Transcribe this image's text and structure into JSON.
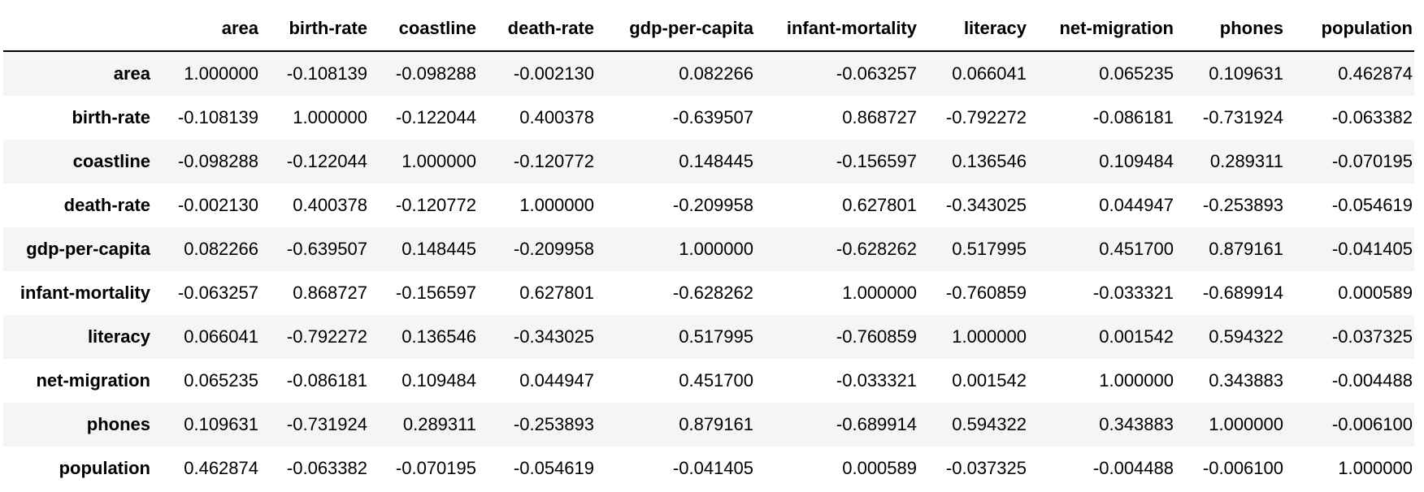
{
  "table": {
    "columns": [
      "area",
      "birth-rate",
      "coastline",
      "death-rate",
      "gdp-per-capita",
      "infant-mortality",
      "literacy",
      "net-migration",
      "phones",
      "population"
    ],
    "rows": [
      {
        "label": "area",
        "values": [
          "1.000000",
          "-0.108139",
          "-0.098288",
          "-0.002130",
          "0.082266",
          "-0.063257",
          "0.066041",
          "0.065235",
          "0.109631",
          "0.462874"
        ]
      },
      {
        "label": "birth-rate",
        "values": [
          "-0.108139",
          "1.000000",
          "-0.122044",
          "0.400378",
          "-0.639507",
          "0.868727",
          "-0.792272",
          "-0.086181",
          "-0.731924",
          "-0.063382"
        ]
      },
      {
        "label": "coastline",
        "values": [
          "-0.098288",
          "-0.122044",
          "1.000000",
          "-0.120772",
          "0.148445",
          "-0.156597",
          "0.136546",
          "0.109484",
          "0.289311",
          "-0.070195"
        ]
      },
      {
        "label": "death-rate",
        "values": [
          "-0.002130",
          "0.400378",
          "-0.120772",
          "1.000000",
          "-0.209958",
          "0.627801",
          "-0.343025",
          "0.044947",
          "-0.253893",
          "-0.054619"
        ]
      },
      {
        "label": "gdp-per-capita",
        "values": [
          "0.082266",
          "-0.639507",
          "0.148445",
          "-0.209958",
          "1.000000",
          "-0.628262",
          "0.517995",
          "0.451700",
          "0.879161",
          "-0.041405"
        ]
      },
      {
        "label": "infant-mortality",
        "values": [
          "-0.063257",
          "0.868727",
          "-0.156597",
          "0.627801",
          "-0.628262",
          "1.000000",
          "-0.760859",
          "-0.033321",
          "-0.689914",
          "0.000589"
        ]
      },
      {
        "label": "literacy",
        "values": [
          "0.066041",
          "-0.792272",
          "0.136546",
          "-0.343025",
          "0.517995",
          "-0.760859",
          "1.000000",
          "0.001542",
          "0.594322",
          "-0.037325"
        ]
      },
      {
        "label": "net-migration",
        "values": [
          "0.065235",
          "-0.086181",
          "0.109484",
          "0.044947",
          "0.451700",
          "-0.033321",
          "0.001542",
          "1.000000",
          "0.343883",
          "-0.004488"
        ]
      },
      {
        "label": "phones",
        "values": [
          "0.109631",
          "-0.731924",
          "0.289311",
          "-0.253893",
          "0.879161",
          "-0.689914",
          "0.594322",
          "0.343883",
          "1.000000",
          "-0.006100"
        ]
      },
      {
        "label": "population",
        "values": [
          "0.462874",
          "-0.063382",
          "-0.070195",
          "-0.054619",
          "-0.041405",
          "0.000589",
          "-0.037325",
          "-0.004488",
          "-0.006100",
          "1.000000"
        ]
      }
    ]
  }
}
